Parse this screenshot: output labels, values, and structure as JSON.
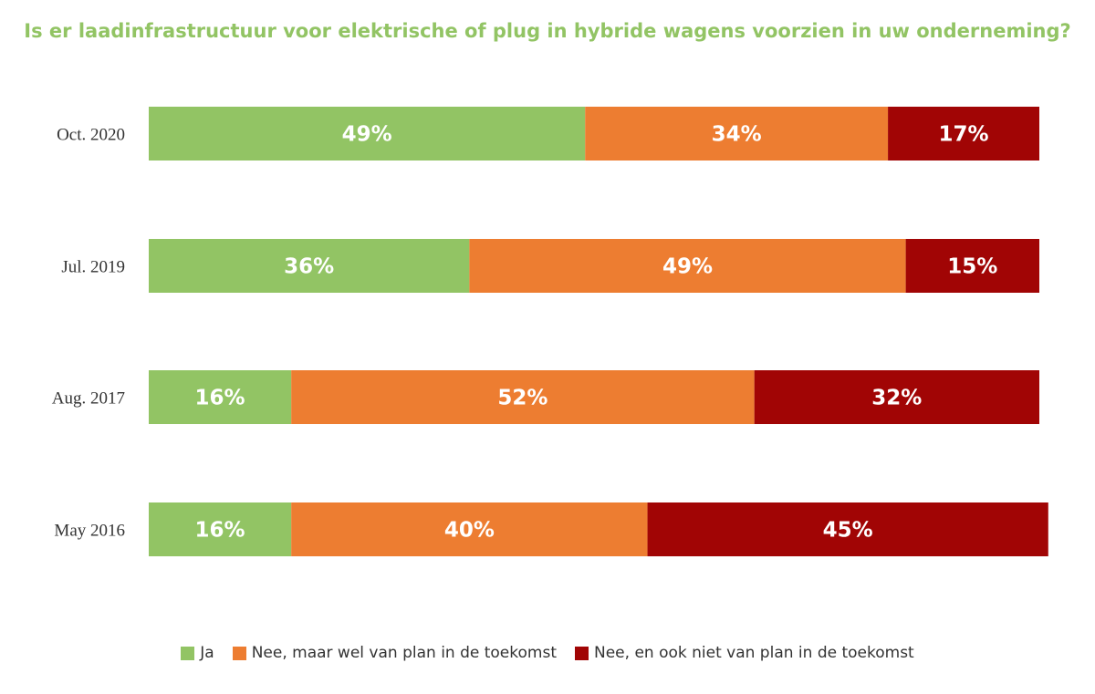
{
  "chart_data": {
    "type": "bar",
    "orientation": "horizontal",
    "stacked": true,
    "title": "Is er laadinfrastructuur voor elektrische of plug in hybride wagens voorzien in uw onderneming?",
    "categories": [
      "Oct. 2020",
      "Jul. 2019",
      "Aug. 2017",
      "May 2016"
    ],
    "series": [
      {
        "name": "Ja",
        "color": "#92c464",
        "values": [
          49,
          36,
          16,
          16
        ],
        "labels": [
          "49%",
          "36%",
          "16%",
          "16%"
        ]
      },
      {
        "name": "Nee, maar wel van plan in de toekomst",
        "color": "#ed7d31",
        "values": [
          34,
          49,
          52,
          40
        ],
        "labels": [
          "34%",
          "49%",
          "52%",
          "40%"
        ]
      },
      {
        "name": "Nee, en ook niet van plan in de toekomst",
        "color": "#a10505",
        "values": [
          17,
          15,
          32,
          45
        ],
        "labels": [
          "17%",
          "15%",
          "32%",
          "45%"
        ]
      }
    ],
    "xlim": [
      0,
      100
    ],
    "legend": "bottom",
    "grid": false
  },
  "colors": {
    "title": "#92c464"
  }
}
